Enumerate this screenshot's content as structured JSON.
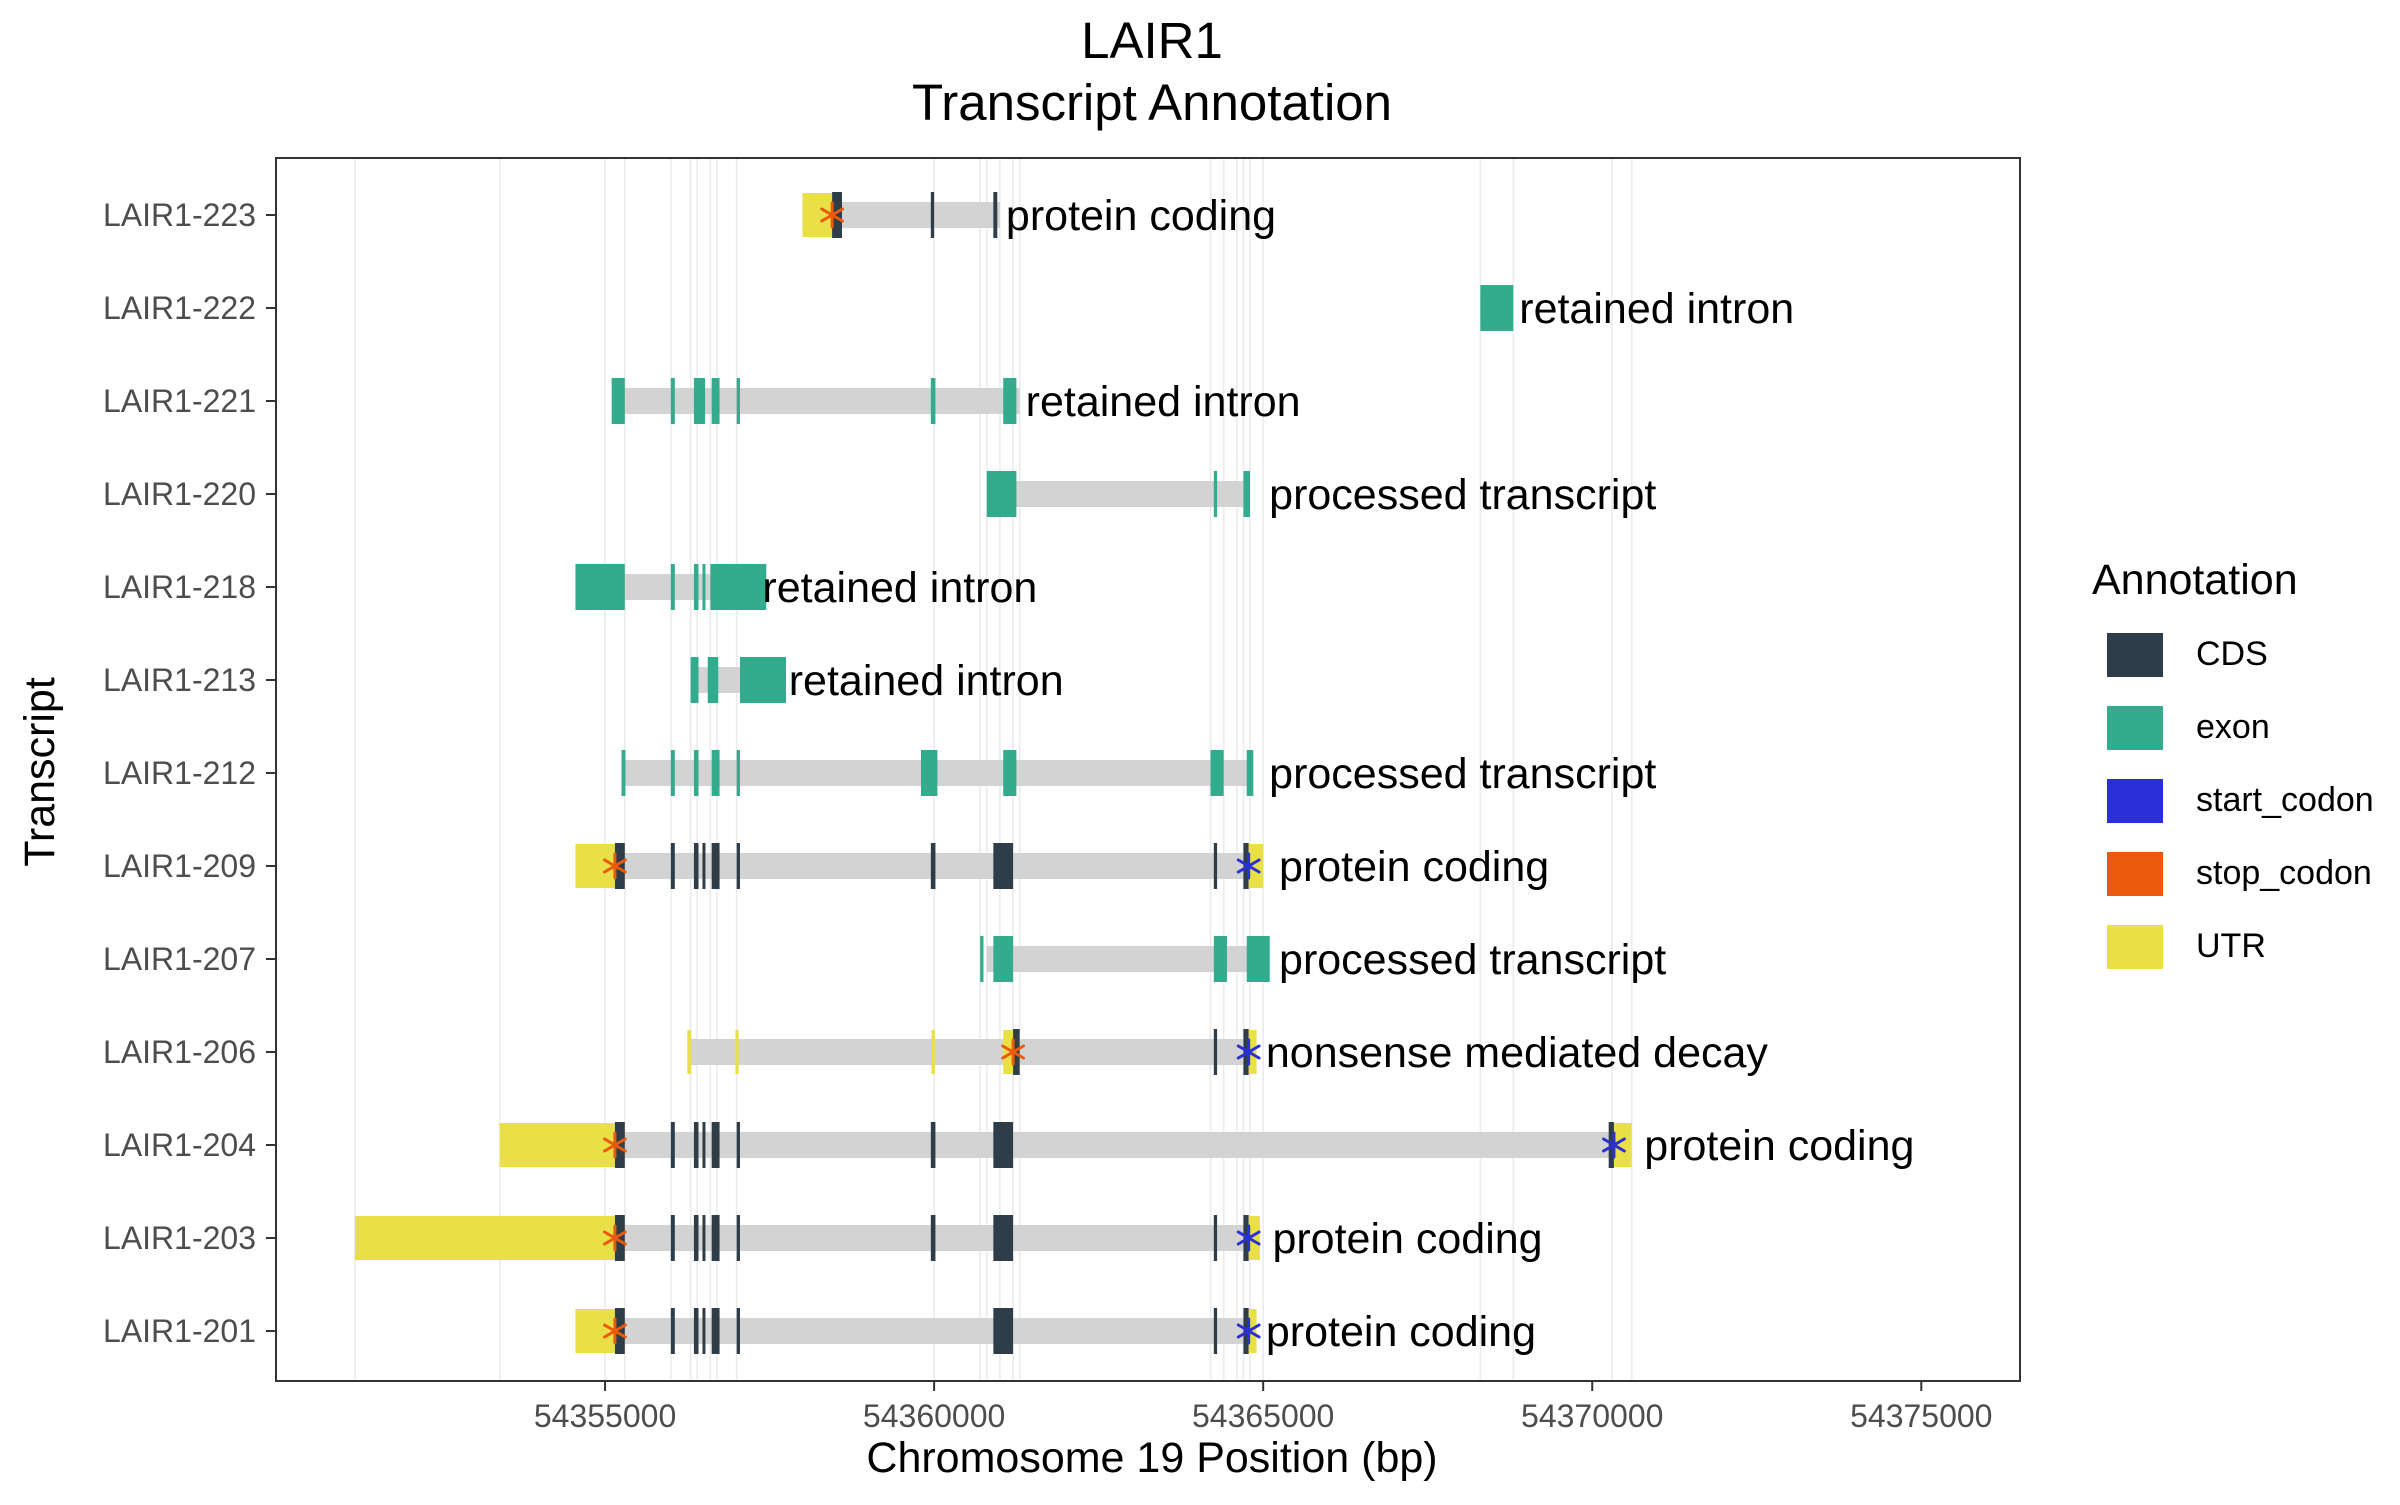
{
  "chart_data": {
    "type": "gene-transcript-annotation",
    "title": "LAIR1",
    "subtitle": "Transcript Annotation",
    "xlabel": "Chromosome 19 Position (bp)",
    "ylabel": "Transcript",
    "xlim": [
      54350000,
      54376500
    ],
    "x_ticks": [
      54355000,
      54360000,
      54365000,
      54370000,
      54375000
    ],
    "x_tick_labels": [
      "54355000",
      "54360000",
      "54365000",
      "54370000",
      "54375000"
    ],
    "legend": {
      "title": "Annotation",
      "position": "right",
      "items": [
        {
          "key": "CDS",
          "label": "CDS",
          "color": "#2f3d48"
        },
        {
          "key": "exon",
          "label": "exon",
          "color": "#33ab8e"
        },
        {
          "key": "start_codon",
          "label": "start_codon",
          "color": "#2b2fd8"
        },
        {
          "key": "stop_codon",
          "label": "stop_codon",
          "color": "#eb5a0c"
        },
        {
          "key": "UTR",
          "label": "UTR",
          "color": "#e8e046"
        }
      ]
    },
    "colors": {
      "intron_line": "#d3d3d3",
      "gridline": "#ebebeb",
      "panel_border": "#333333"
    },
    "grid_x_positions": [
      54351200,
      54353400,
      54355000,
      54355300,
      54356000,
      54356300,
      54356400,
      54356600,
      54356700,
      54357000,
      54360000,
      54360700,
      54360800,
      54361000,
      54361200,
      54361300,
      54364200,
      54364400,
      54364600,
      54364700,
      54364800,
      54365000,
      54368300,
      54368800,
      54370300,
      54370600
    ],
    "transcripts": [
      {
        "name": "LAIR1-223",
        "biotype": "protein coding",
        "label_at": 54361000,
        "intron": [
          54358300,
          54361000
        ],
        "features": [
          {
            "type": "UTR",
            "start": 54358000,
            "end": 54358450
          },
          {
            "type": "CDS",
            "start": 54358450,
            "end": 54358600
          },
          {
            "type": "CDS",
            "start": 54359950,
            "end": 54360000
          },
          {
            "type": "CDS",
            "start": 54360900,
            "end": 54360960
          }
        ],
        "stop_codon": 54358450
      },
      {
        "name": "LAIR1-222",
        "biotype": "retained intron",
        "label_at": 54368800,
        "intron": [
          54368300,
          54368800
        ],
        "features": [
          {
            "type": "exon",
            "start": 54368300,
            "end": 54368800
          }
        ]
      },
      {
        "name": "LAIR1-221",
        "biotype": "retained intron",
        "label_at": 54361300,
        "intron": [
          54355150,
          54361300
        ],
        "features": [
          {
            "type": "exon",
            "start": 54355100,
            "end": 54355300
          },
          {
            "type": "exon",
            "start": 54356000,
            "end": 54356060
          },
          {
            "type": "exon",
            "start": 54356350,
            "end": 54356520
          },
          {
            "type": "exon",
            "start": 54356620,
            "end": 54356740
          },
          {
            "type": "exon",
            "start": 54357000,
            "end": 54357050
          },
          {
            "type": "exon",
            "start": 54359950,
            "end": 54360020
          },
          {
            "type": "exon",
            "start": 54361050,
            "end": 54361250
          }
        ]
      },
      {
        "name": "LAIR1-220",
        "biotype": "processed transcript",
        "label_at": 54365000,
        "intron": [
          54361000,
          54364800
        ],
        "features": [
          {
            "type": "exon",
            "start": 54360800,
            "end": 54361250
          },
          {
            "type": "exon",
            "start": 54364250,
            "end": 54364300
          },
          {
            "type": "exon",
            "start": 54364700,
            "end": 54364800
          }
        ]
      },
      {
        "name": "LAIR1-218",
        "biotype": "retained intron",
        "label_at": 54357300,
        "intron": [
          54355200,
          54356700
        ],
        "features": [
          {
            "type": "exon",
            "start": 54354550,
            "end": 54355300
          },
          {
            "type": "exon",
            "start": 54356000,
            "end": 54356060
          },
          {
            "type": "exon",
            "start": 54356350,
            "end": 54356420
          },
          {
            "type": "exon",
            "start": 54356480,
            "end": 54356520
          },
          {
            "type": "exon",
            "start": 54356600,
            "end": 54357450
          }
        ]
      },
      {
        "name": "LAIR1-213",
        "biotype": "retained intron",
        "label_at": 54357700,
        "intron": [
          54356400,
          54357100
        ],
        "features": [
          {
            "type": "exon",
            "start": 54356300,
            "end": 54356420
          },
          {
            "type": "exon",
            "start": 54356560,
            "end": 54356720
          },
          {
            "type": "exon",
            "start": 54357050,
            "end": 54357750
          }
        ]
      },
      {
        "name": "LAIR1-212",
        "biotype": "processed transcript",
        "label_at": 54365000,
        "intron": [
          54355300,
          54364800
        ],
        "features": [
          {
            "type": "exon",
            "start": 54355250,
            "end": 54355310
          },
          {
            "type": "exon",
            "start": 54356000,
            "end": 54356060
          },
          {
            "type": "exon",
            "start": 54356350,
            "end": 54356420
          },
          {
            "type": "exon",
            "start": 54356620,
            "end": 54356740
          },
          {
            "type": "exon",
            "start": 54357000,
            "end": 54357050
          },
          {
            "type": "exon",
            "start": 54359800,
            "end": 54360050
          },
          {
            "type": "exon",
            "start": 54361050,
            "end": 54361250
          },
          {
            "type": "exon",
            "start": 54364200,
            "end": 54364400
          },
          {
            "type": "exon",
            "start": 54364750,
            "end": 54364850
          }
        ]
      },
      {
        "name": "LAIR1-209",
        "biotype": "protein coding",
        "label_at": 54365150,
        "intron": [
          54355200,
          54364750
        ],
        "features": [
          {
            "type": "UTR",
            "start": 54354550,
            "end": 54355150
          },
          {
            "type": "CDS",
            "start": 54355150,
            "end": 54355300
          },
          {
            "type": "CDS",
            "start": 54356000,
            "end": 54356060
          },
          {
            "type": "CDS",
            "start": 54356350,
            "end": 54356420
          },
          {
            "type": "CDS",
            "start": 54356480,
            "end": 54356520
          },
          {
            "type": "CDS",
            "start": 54356620,
            "end": 54356740
          },
          {
            "type": "CDS",
            "start": 54357000,
            "end": 54357050
          },
          {
            "type": "CDS",
            "start": 54359950,
            "end": 54360020
          },
          {
            "type": "CDS",
            "start": 54360900,
            "end": 54361200
          },
          {
            "type": "CDS",
            "start": 54364250,
            "end": 54364300
          },
          {
            "type": "CDS",
            "start": 54364700,
            "end": 54364780
          },
          {
            "type": "UTR",
            "start": 54364780,
            "end": 54365000
          }
        ],
        "stop_codon": 54355150,
        "start_codon": 54364780
      },
      {
        "name": "LAIR1-207",
        "biotype": "processed transcript",
        "label_at": 54365150,
        "intron": [
          54360800,
          54365000
        ],
        "features": [
          {
            "type": "exon",
            "start": 54360700,
            "end": 54360750
          },
          {
            "type": "exon",
            "start": 54360900,
            "end": 54361200
          },
          {
            "type": "exon",
            "start": 54364250,
            "end": 54364450
          },
          {
            "type": "exon",
            "start": 54364750,
            "end": 54365100
          }
        ]
      },
      {
        "name": "LAIR1-206",
        "biotype": "nonsense mediated decay",
        "label_at": 54364950,
        "intron": [
          54356300,
          54364800
        ],
        "features": [
          {
            "type": "UTR",
            "start": 54356250,
            "end": 54356310
          },
          {
            "type": "UTR",
            "start": 54356980,
            "end": 54357030
          },
          {
            "type": "UTR",
            "start": 54359960,
            "end": 54360010
          },
          {
            "type": "UTR",
            "start": 54361050,
            "end": 54361200
          },
          {
            "type": "CDS",
            "start": 54361200,
            "end": 54361300
          },
          {
            "type": "CDS",
            "start": 54364250,
            "end": 54364300
          },
          {
            "type": "CDS",
            "start": 54364700,
            "end": 54364780
          },
          {
            "type": "UTR",
            "start": 54364780,
            "end": 54364900
          }
        ],
        "stop_codon": 54361200,
        "start_codon": 54364780
      },
      {
        "name": "LAIR1-204",
        "biotype": "protein coding",
        "label_at": 54370700,
        "intron": [
          54355200,
          54370400
        ],
        "features": [
          {
            "type": "UTR",
            "start": 54353400,
            "end": 54355150
          },
          {
            "type": "CDS",
            "start": 54355150,
            "end": 54355300
          },
          {
            "type": "CDS",
            "start": 54356000,
            "end": 54356060
          },
          {
            "type": "CDS",
            "start": 54356350,
            "end": 54356420
          },
          {
            "type": "CDS",
            "start": 54356480,
            "end": 54356520
          },
          {
            "type": "CDS",
            "start": 54356620,
            "end": 54356740
          },
          {
            "type": "CDS",
            "start": 54357000,
            "end": 54357050
          },
          {
            "type": "CDS",
            "start": 54359950,
            "end": 54360020
          },
          {
            "type": "CDS",
            "start": 54360900,
            "end": 54361200
          },
          {
            "type": "CDS",
            "start": 54370250,
            "end": 54370330
          },
          {
            "type": "UTR",
            "start": 54370330,
            "end": 54370600
          }
        ],
        "stop_codon": 54355150,
        "start_codon": 54370330
      },
      {
        "name": "LAIR1-203",
        "biotype": "protein coding",
        "label_at": 54365050,
        "intron": [
          54355200,
          54364750
        ],
        "features": [
          {
            "type": "UTR",
            "start": 54351200,
            "end": 54355150
          },
          {
            "type": "CDS",
            "start": 54355150,
            "end": 54355300
          },
          {
            "type": "CDS",
            "start": 54356000,
            "end": 54356060
          },
          {
            "type": "CDS",
            "start": 54356350,
            "end": 54356420
          },
          {
            "type": "CDS",
            "start": 54356480,
            "end": 54356520
          },
          {
            "type": "CDS",
            "start": 54356620,
            "end": 54356740
          },
          {
            "type": "CDS",
            "start": 54357000,
            "end": 54357050
          },
          {
            "type": "CDS",
            "start": 54359950,
            "end": 54360020
          },
          {
            "type": "CDS",
            "start": 54360900,
            "end": 54361200
          },
          {
            "type": "CDS",
            "start": 54364250,
            "end": 54364300
          },
          {
            "type": "CDS",
            "start": 54364700,
            "end": 54364780
          },
          {
            "type": "UTR",
            "start": 54364780,
            "end": 54364950
          }
        ],
        "stop_codon": 54355150,
        "start_codon": 54364780
      },
      {
        "name": "LAIR1-201",
        "biotype": "protein coding",
        "label_at": 54364950,
        "intron": [
          54355200,
          54364750
        ],
        "features": [
          {
            "type": "UTR",
            "start": 54354550,
            "end": 54355150
          },
          {
            "type": "CDS",
            "start": 54355150,
            "end": 54355300
          },
          {
            "type": "CDS",
            "start": 54356000,
            "end": 54356060
          },
          {
            "type": "CDS",
            "start": 54356350,
            "end": 54356420
          },
          {
            "type": "CDS",
            "start": 54356480,
            "end": 54356520
          },
          {
            "type": "CDS",
            "start": 54356620,
            "end": 54356740
          },
          {
            "type": "CDS",
            "start": 54357000,
            "end": 54357050
          },
          {
            "type": "CDS",
            "start": 54360900,
            "end": 54361200
          },
          {
            "type": "CDS",
            "start": 54364250,
            "end": 54364300
          },
          {
            "type": "CDS",
            "start": 54364700,
            "end": 54364780
          },
          {
            "type": "UTR",
            "start": 54364780,
            "end": 54364900
          }
        ],
        "stop_codon": 54355150,
        "start_codon": 54364780
      }
    ]
  }
}
